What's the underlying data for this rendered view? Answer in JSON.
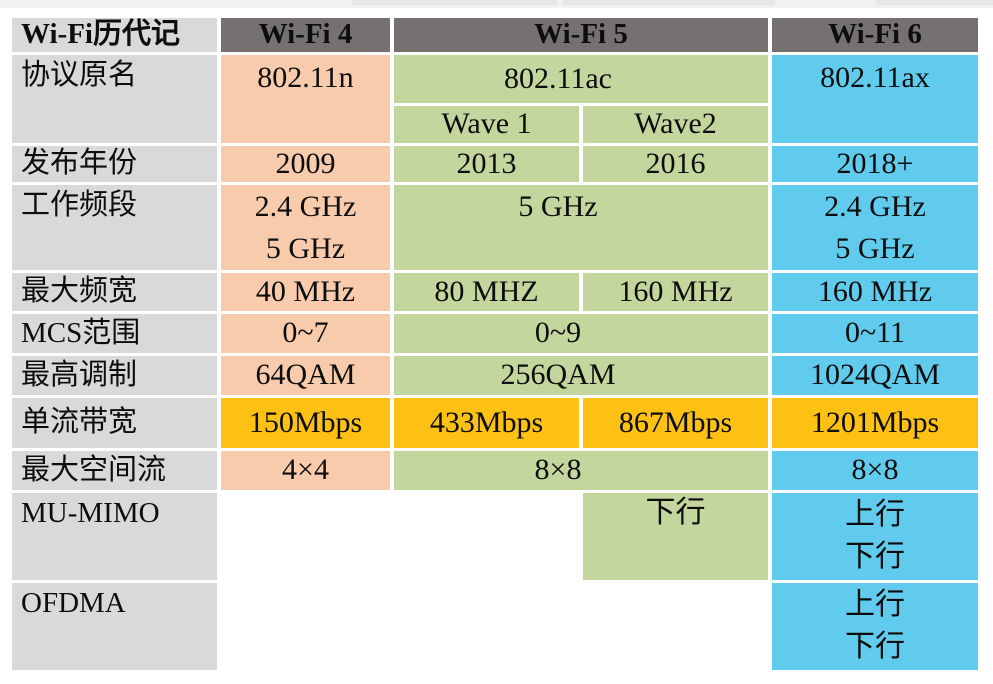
{
  "palette": {
    "header_bg": "#767171",
    "label_bg": "#d9d9d9",
    "wifi4_bg": "#f8cbad",
    "wifi5_bg": "#c3d69e",
    "wifi6_bg": "#60cbec",
    "highlight_bg": "#fdc113",
    "text": "#0d0d0d"
  },
  "table": {
    "header": {
      "corner": "Wi-Fi历代记",
      "wifi4": "Wi-Fi 4",
      "wifi5": "Wi-Fi 5",
      "wifi6": "Wi-Fi 6"
    },
    "rows": {
      "protocol": {
        "label": "协议原名",
        "wifi4": "802.11n",
        "wifi5": "802.11ac",
        "wave1": "Wave 1",
        "wave2": "Wave2",
        "wifi6": "802.11ax"
      },
      "release_year": {
        "label": "发布年份",
        "wifi4": "2009",
        "wave1": "2013",
        "wave2": "2016",
        "wifi6": "2018+"
      },
      "band": {
        "label": "工作频段",
        "wifi4_line1": "2.4 GHz",
        "wifi4_line2": "5 GHz",
        "wifi5": "5 GHz",
        "wifi6_line1": "2.4 GHz",
        "wifi6_line2": "5 GHz"
      },
      "max_bandwidth": {
        "label": "最大频宽",
        "wifi4": "40 MHz",
        "wave1": "80 MHZ",
        "wave2": "160 MHz",
        "wifi6": "160 MHz"
      },
      "mcs": {
        "label": "MCS范围",
        "wifi4": "0~7",
        "wifi5": "0~9",
        "wifi6": "0~11"
      },
      "modulation": {
        "label": "最高调制",
        "wifi4": "64QAM",
        "wifi5": "256QAM",
        "wifi6": "1024QAM"
      },
      "stream_rate": {
        "label": "单流带宽",
        "wifi4": "150Mbps",
        "wave1": "433Mbps",
        "wave2": "867Mbps",
        "wifi6": "1201Mbps"
      },
      "spatial": {
        "label": "最大空间流",
        "wifi4": "4×4",
        "wifi5": "8×8",
        "wifi6": "8×8"
      },
      "mu_mimo": {
        "label": "MU-MIMO",
        "wave2": "下行",
        "wifi6_line1": "上行",
        "wifi6_line2": "下行"
      },
      "ofdma": {
        "label": "OFDMA",
        "wifi6_line1": "上行",
        "wifi6_line2": "下行"
      }
    }
  }
}
